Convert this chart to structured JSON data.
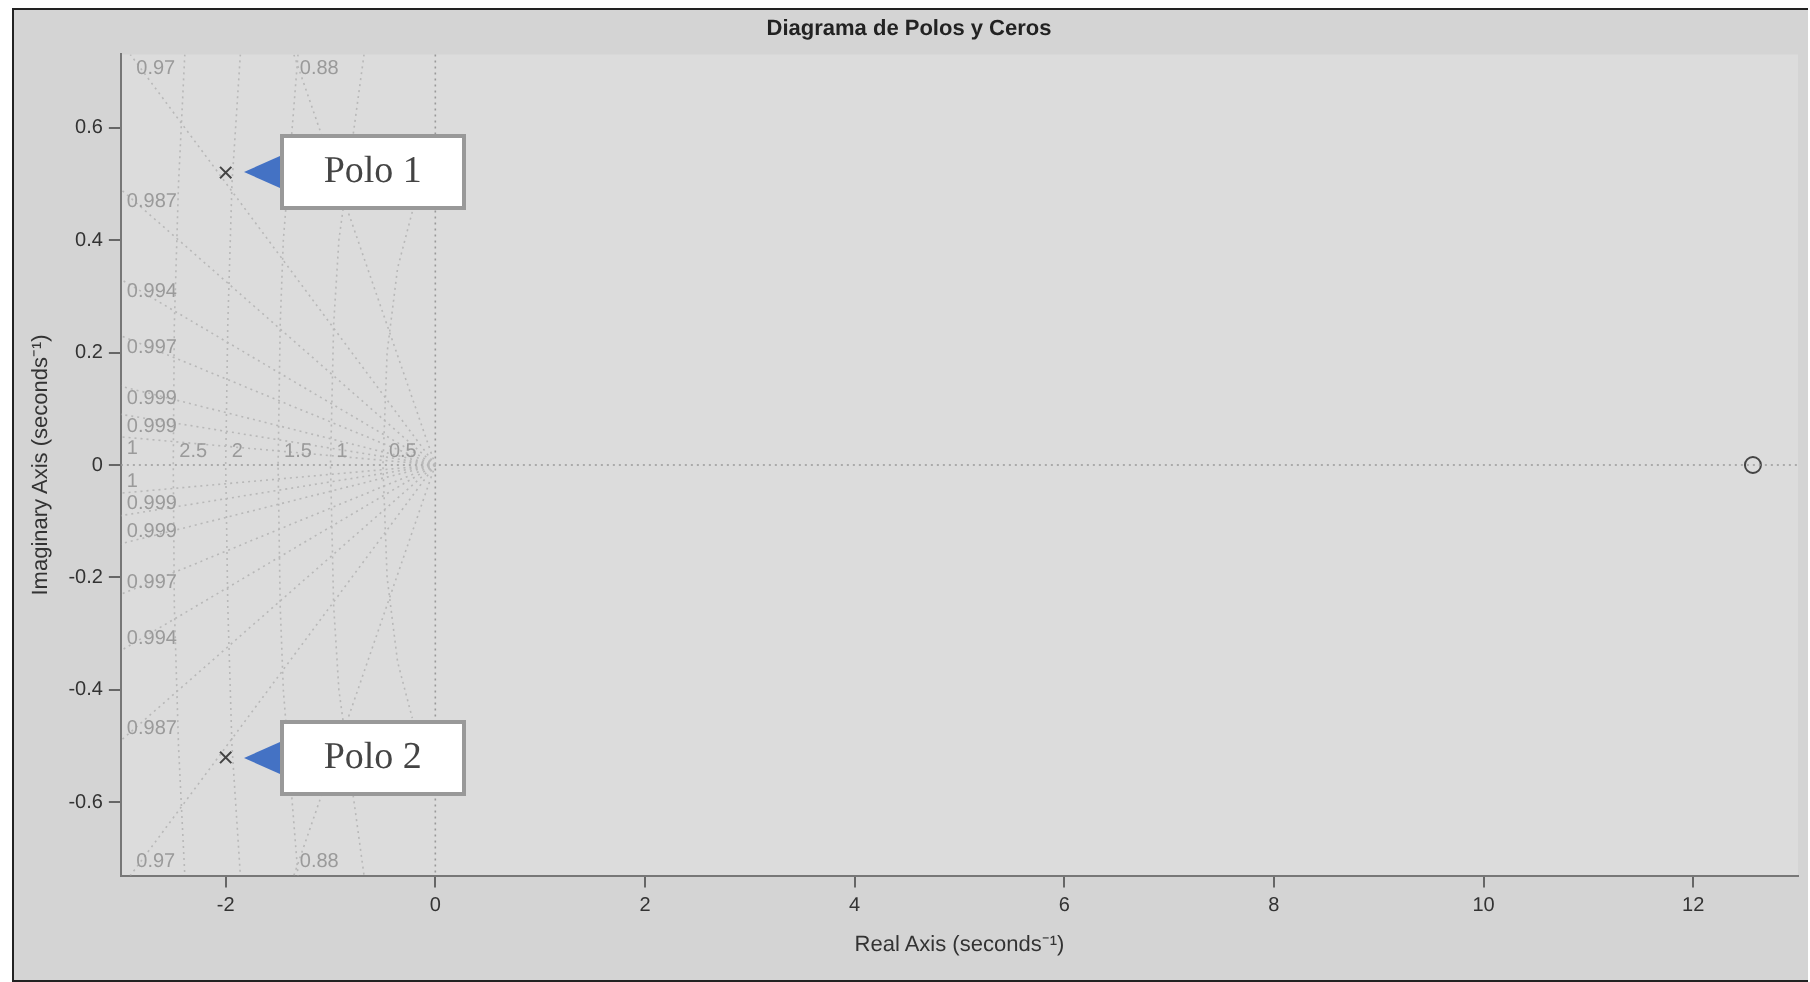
{
  "chart_data": {
    "type": "scatter",
    "title": "Diagrama de Polos y Ceros",
    "xlabel": "Real Axis (seconds⁻¹)",
    "ylabel": "Imaginary Axis (seconds⁻¹)",
    "xlim": [
      -3,
      13
    ],
    "xticks": [
      -2,
      0,
      2,
      4,
      6,
      8,
      10,
      12
    ],
    "ylim": [
      -0.73,
      0.73
    ],
    "yticks": [
      -0.6,
      -0.4,
      -0.2,
      0,
      0.2,
      0.4,
      0.6
    ],
    "series": [
      {
        "name": "0.97",
        "type": "line",
        "color": "#b8b8b8",
        "marker": "none",
        "line_style": "dotted",
        "x": [
          0,
          -2.91
        ],
        "values": [
          0,
          0.73
        ]
      },
      {
        "name": "0.88",
        "type": "line",
        "color": "#b8b8b8",
        "marker": "none",
        "line_style": "dotted",
        "x": [
          0,
          -1.35
        ],
        "values": [
          0,
          0.73
        ]
      },
      {
        "name": "0.987",
        "type": "line",
        "color": "#b8b8b8",
        "marker": "none",
        "line_style": "dotted",
        "x": [
          0,
          -3
        ],
        "values": [
          0,
          0.49
        ]
      },
      {
        "name": "0.994",
        "type": "line",
        "color": "#b8b8b8",
        "marker": "none",
        "line_style": "dotted",
        "x": [
          0,
          -3
        ],
        "values": [
          0,
          0.33
        ]
      },
      {
        "name": "0.997",
        "type": "line",
        "color": "#b8b8b8",
        "marker": "none",
        "line_style": "dotted",
        "x": [
          0,
          -3
        ],
        "values": [
          0,
          0.23
        ]
      },
      {
        "name": "0.999",
        "type": "line",
        "color": "#b8b8b8",
        "marker": "none",
        "line_style": "dotted",
        "x": [
          0,
          -3
        ],
        "values": [
          0,
          0.14
        ]
      },
      {
        "name": "0.999",
        "type": "line",
        "color": "#b8b8b8",
        "marker": "none",
        "line_style": "dotted",
        "x": [
          0,
          -3
        ],
        "values": [
          0,
          0.09
        ]
      },
      {
        "name": "1",
        "type": "line",
        "color": "#b8b8b8",
        "marker": "none",
        "line_style": "dotted",
        "x": [
          0,
          -3
        ],
        "values": [
          0,
          0.05
        ]
      },
      {
        "name": "1",
        "type": "line",
        "color": "#b8b8b8",
        "marker": "none",
        "line_style": "dotted",
        "x": [
          0,
          -3
        ],
        "values": [
          0,
          -0.05
        ]
      },
      {
        "name": "0.999",
        "type": "line",
        "color": "#b8b8b8",
        "marker": "none",
        "line_style": "dotted",
        "x": [
          0,
          -3
        ],
        "values": [
          0,
          -0.09
        ]
      },
      {
        "name": "0.999",
        "type": "line",
        "color": "#b8b8b8",
        "marker": "none",
        "line_style": "dotted",
        "x": [
          0,
          -3
        ],
        "values": [
          0,
          -0.14
        ]
      },
      {
        "name": "0.997",
        "type": "line",
        "color": "#b8b8b8",
        "marker": "none",
        "line_style": "dotted",
        "x": [
          0,
          -3
        ],
        "values": [
          0,
          -0.23
        ]
      },
      {
        "name": "0.994",
        "type": "line",
        "color": "#b8b8b8",
        "marker": "none",
        "line_style": "dotted",
        "x": [
          0,
          -3
        ],
        "values": [
          0,
          -0.33
        ]
      },
      {
        "name": "0.987",
        "type": "line",
        "color": "#b8b8b8",
        "marker": "none",
        "line_style": "dotted",
        "x": [
          0,
          -3
        ],
        "values": [
          0,
          -0.49
        ]
      },
      {
        "name": "0.97",
        "type": "line",
        "color": "#b8b8b8",
        "marker": "none",
        "line_style": "dotted",
        "x": [
          0,
          -2.91
        ],
        "values": [
          0,
          -0.73
        ]
      },
      {
        "name": "0.88",
        "type": "line",
        "color": "#b8b8b8",
        "marker": "none",
        "line_style": "dotted",
        "x": [
          0,
          -1.35
        ],
        "values": [
          0,
          -0.73
        ]
      },
      {
        "name": "2.5",
        "type": "line",
        "color": "#b8b8b8",
        "marker": "none",
        "line_style": "dotted",
        "x": [
          -2.39,
          -2.45,
          -2.49,
          -2.5,
          -2.49,
          -2.45,
          -2.39
        ],
        "values": [
          0.73,
          0.5,
          0.25,
          0,
          -0.25,
          -0.5,
          -0.73
        ]
      },
      {
        "name": "2",
        "type": "line",
        "color": "#b8b8b8",
        "marker": "none",
        "line_style": "dotted",
        "x": [
          -1.86,
          -1.94,
          -1.98,
          -2,
          -1.98,
          -1.94,
          -1.86
        ],
        "values": [
          0.73,
          0.5,
          0.25,
          0,
          -0.25,
          -0.5,
          -0.73
        ]
      },
      {
        "name": "1.5",
        "type": "line",
        "color": "#b8b8b8",
        "marker": "none",
        "line_style": "dotted",
        "x": [
          -1.31,
          -1.45,
          -1.48,
          -1.5,
          -1.48,
          -1.45,
          -1.31
        ],
        "values": [
          0.73,
          0.4,
          0.25,
          0,
          -0.25,
          -0.4,
          -0.73
        ]
      },
      {
        "name": "1",
        "type": "line",
        "color": "#b8b8b8",
        "marker": "none",
        "line_style": "dotted",
        "x": [
          -0.68,
          -0.92,
          -0.97,
          -1,
          -0.97,
          -0.92,
          -0.68
        ],
        "values": [
          0.73,
          0.4,
          0.25,
          0,
          -0.25,
          -0.4,
          -0.73
        ]
      },
      {
        "name": "0.5",
        "type": "line",
        "color": "#b8b8b8",
        "marker": "none",
        "line_style": "dotted",
        "x": [
          -0.22,
          -0.36,
          -0.46,
          -0.5,
          -0.46,
          -0.36,
          -0.22
        ],
        "values": [
          0.45,
          0.35,
          0.2,
          0,
          -0.2,
          -0.35,
          -0.45
        ]
      },
      {
        "type": "line",
        "color": "#999999",
        "marker": "none",
        "line_style": "dotted",
        "x": [
          -3,
          13
        ],
        "values": [
          0,
          0
        ]
      },
      {
        "name": "Polo 1",
        "color": "#444444",
        "marker": "cross",
        "x": [
          -2
        ],
        "values": [
          0.52
        ]
      },
      {
        "name": "Polo 2",
        "color": "#444444",
        "marker": "cross",
        "x": [
          -2
        ],
        "values": [
          -0.52
        ]
      },
      {
        "color": "#444444",
        "marker": "circle",
        "x": [
          12.57
        ],
        "values": [
          0
        ]
      }
    ],
    "ref_lines": [
      {
        "axis": "x",
        "value": 0,
        "color": "#999999",
        "line_style": "dotted"
      }
    ]
  }
}
